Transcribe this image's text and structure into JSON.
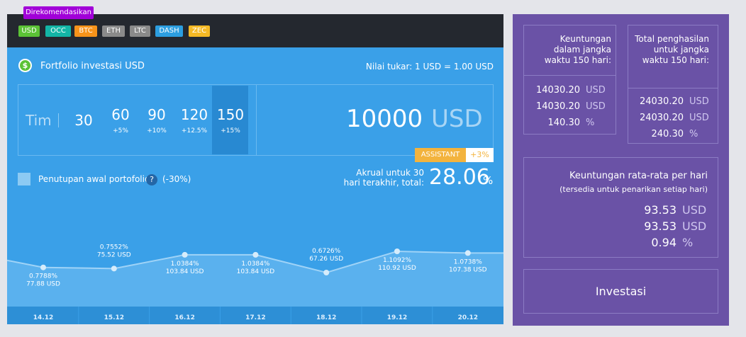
{
  "tooltip": "Direkomendasikan",
  "currencies": [
    "USD",
    "OCC",
    "BTC",
    "ETH",
    "LTC",
    "DASH",
    "ZEC"
  ],
  "portfolio": {
    "title": "Fortfolio investasi USD",
    "rate": "Nilai tukar: 1 USD = 1.00 USD"
  },
  "periods": {
    "label": "Tim",
    "options": [
      {
        "days": "30"
      },
      {
        "days": "60",
        "bonus": "+5%"
      },
      {
        "days": "90",
        "bonus": "+10%"
      },
      {
        "days": "120",
        "bonus": "+12.5%"
      },
      {
        "days": "150",
        "bonus": "+15%"
      }
    ]
  },
  "amount": {
    "value": "10000",
    "currency": "USD"
  },
  "assistant": {
    "label": "ASSISTANT",
    "bonus": "+3%"
  },
  "early_close": {
    "label": "Penutupan awal portofolio",
    "help": "?",
    "penalty": "(-30%)"
  },
  "accrual": {
    "label": "Akrual untuk 30 hari terakhir, total:",
    "value": "28.06",
    "unit": "%"
  },
  "chart": {
    "dates": [
      "14.12",
      "15.12",
      "16.12",
      "17.12",
      "18.12",
      "19.12",
      "20.12"
    ],
    "values": [
      77.88,
      75.52,
      103.84,
      103.84,
      67.26,
      110.92,
      107.38
    ],
    "usd_labels": [
      "77.88 USD",
      "75.52 USD",
      "103.84 USD",
      "103.84 USD",
      "67.26 USD",
      "110.92 USD",
      "107.38 USD"
    ],
    "pct_labels": [
      "0.7788%",
      "0.7552%",
      "1.0384%",
      "1.0384%",
      "0.6726%",
      "1.1092%",
      "1.0738%"
    ]
  },
  "profit": {
    "title": "Keuntungan dalam jangka waktu 150 hari:",
    "rows": [
      [
        "14030.20",
        "USD"
      ],
      [
        "14030.20",
        "USD"
      ],
      [
        "140.30",
        "%"
      ]
    ]
  },
  "total": {
    "title": "Total penghasilan untuk jangka waktu 150 hari:",
    "rows": [
      [
        "24030.20",
        "USD"
      ],
      [
        "24030.20",
        "USD"
      ],
      [
        "240.30",
        "%"
      ]
    ]
  },
  "daily": {
    "title": "Keuntungan rata-rata per hari",
    "subtitle": "(tersedia untuk penarikan setiap hari)",
    "rows": [
      [
        "93.53",
        "USD"
      ],
      [
        "93.53",
        "USD"
      ],
      [
        "0.94",
        "%"
      ]
    ]
  },
  "button": "Investasi"
}
